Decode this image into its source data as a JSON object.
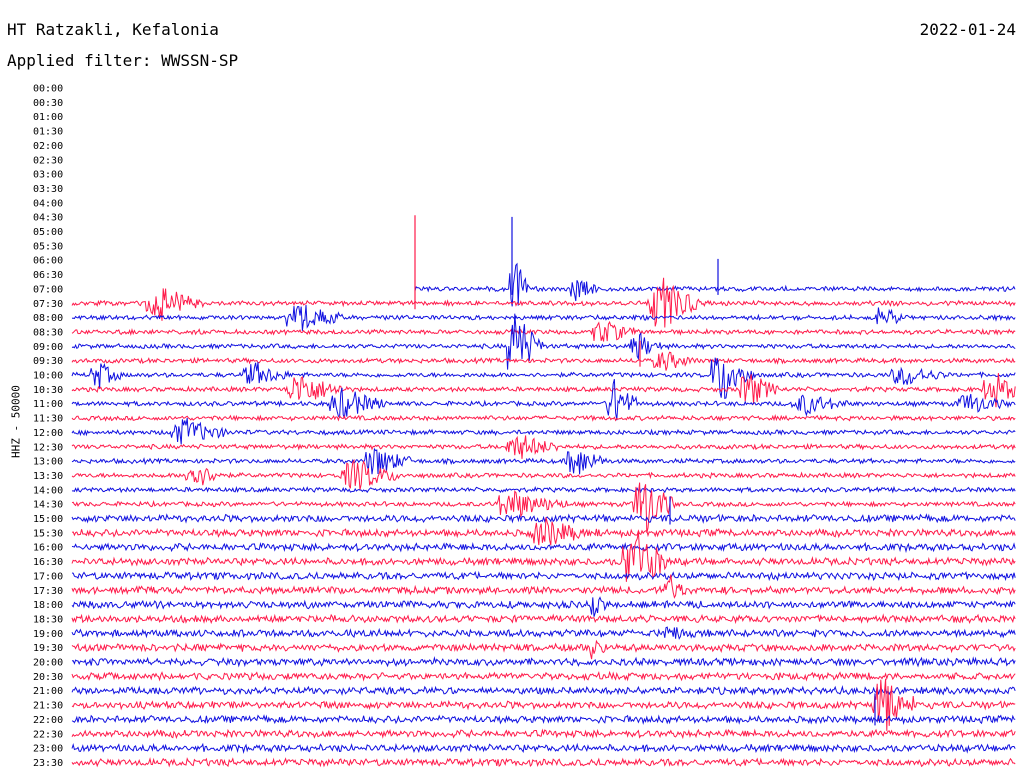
{
  "header": {
    "station": "HT Ratzakli, Kefalonia",
    "date": "2022-01-24",
    "filter": "Applied filter: WWSSN-SP"
  },
  "chart_data": {
    "type": "line",
    "title": "HT Ratzakli, Kefalonia",
    "ylabel": "HHZ - 50000",
    "colors": [
      "#ff1a4a",
      "#1010e0"
    ],
    "y_ticks": [
      "00:00",
      "00:30",
      "01:00",
      "01:30",
      "02:00",
      "02:30",
      "03:00",
      "03:30",
      "04:00",
      "04:30",
      "05:00",
      "05:30",
      "06:00",
      "06:30",
      "07:00",
      "07:30",
      "08:00",
      "08:30",
      "09:00",
      "09:30",
      "10:00",
      "10:30",
      "11:00",
      "11:30",
      "12:00",
      "12:30",
      "13:00",
      "13:30",
      "14:00",
      "14:30",
      "15:00",
      "15:30",
      "16:00",
      "16:30",
      "17:00",
      "17:30",
      "18:00",
      "18:30",
      "19:00",
      "19:30",
      "20:00",
      "20:30",
      "21:00",
      "21:30",
      "22:00",
      "22:30",
      "23:00",
      "23:30"
    ],
    "traces_start_tick": "07:00",
    "trace_start_time": "07:00",
    "grid": false
  }
}
